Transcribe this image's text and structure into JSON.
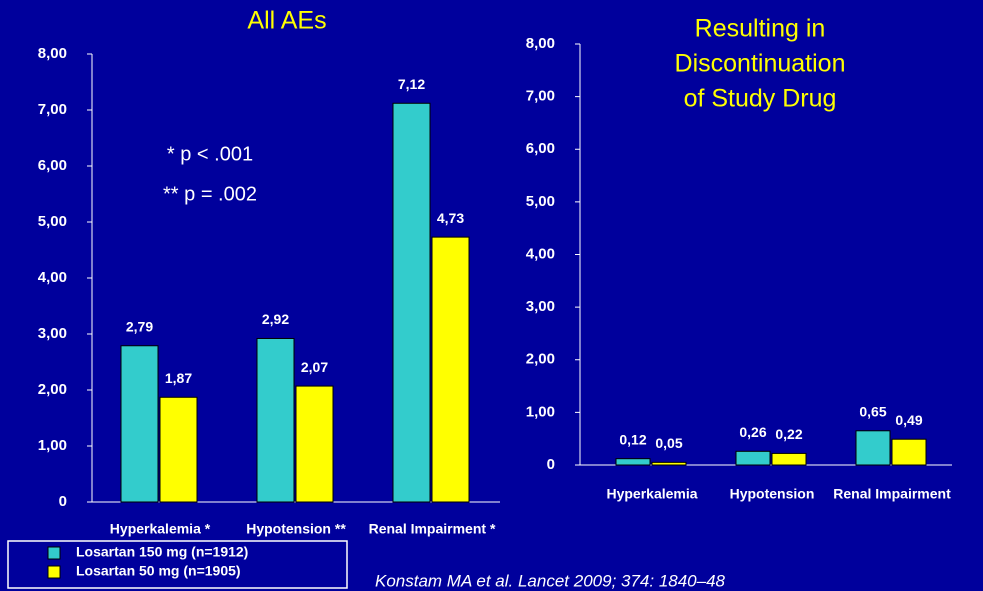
{
  "chart_data": [
    {
      "type": "bar",
      "title": [
        "All AEs"
      ],
      "categories": [
        "Hyperkalemia *",
        "Hypotension **",
        "Renal Impairment *"
      ],
      "series": [
        {
          "name": "Losartan 150 mg (n=1912)",
          "color": "#33cccc",
          "values": [
            2.79,
            2.92,
            7.12
          ],
          "value_labels": [
            "2,79",
            "2,92",
            "7,12"
          ]
        },
        {
          "name": "Losartan 50 mg (n=1905)",
          "color": "#ffff00",
          "values": [
            1.87,
            2.07,
            4.73
          ],
          "value_labels": [
            "1,87",
            "2,07",
            "4,73"
          ]
        }
      ],
      "ylim": [
        0,
        8
      ],
      "yticks": [
        0,
        {
          "value": 1,
          "label": "1,00"
        },
        {
          "value": 2,
          "label": "2,00"
        },
        {
          "value": 3,
          "label": "3,00"
        },
        {
          "value": 4,
          "label": "4,00"
        },
        {
          "value": 5,
          "label": "5,00"
        },
        {
          "value": 6,
          "label": "6,00"
        },
        {
          "value": 7,
          "label": "7,00"
        },
        {
          "value": 8,
          "label": "8,00"
        }
      ],
      "annotations": [
        "* p < .001",
        "** p = .002"
      ]
    },
    {
      "type": "bar",
      "title": [
        "Resulting in",
        "Discontinuation",
        "of Study Drug"
      ],
      "categories": [
        "Hyperkalemia",
        "Hypotension",
        "Renal Impairment"
      ],
      "series": [
        {
          "color": "#33cccc",
          "values": [
            0.12,
            0.26,
            0.65
          ],
          "value_labels": [
            "0,12",
            "0,26",
            "0,65"
          ]
        },
        {
          "color": "#ffff00",
          "values": [
            0.05,
            0.22,
            0.49
          ],
          "value_labels": [
            "0,05",
            "0,22",
            "0,49"
          ]
        }
      ],
      "ylim": [
        0,
        8
      ],
      "yticks": [
        0,
        {
          "value": 1,
          "label": "1,00"
        },
        {
          "value": 2,
          "label": "2,00"
        },
        {
          "value": 3,
          "label": "3,00"
        },
        {
          "value": 4,
          "label": "4,00"
        },
        {
          "value": 5,
          "label": "5,00"
        },
        {
          "value": 6,
          "label": "6,00"
        },
        {
          "value": 7,
          "label": "7,00"
        },
        {
          "value": 8,
          "label": "8,00"
        }
      ]
    }
  ],
  "citation": "Konstam MA et al. Lancet 2009; 374: 1840–48"
}
